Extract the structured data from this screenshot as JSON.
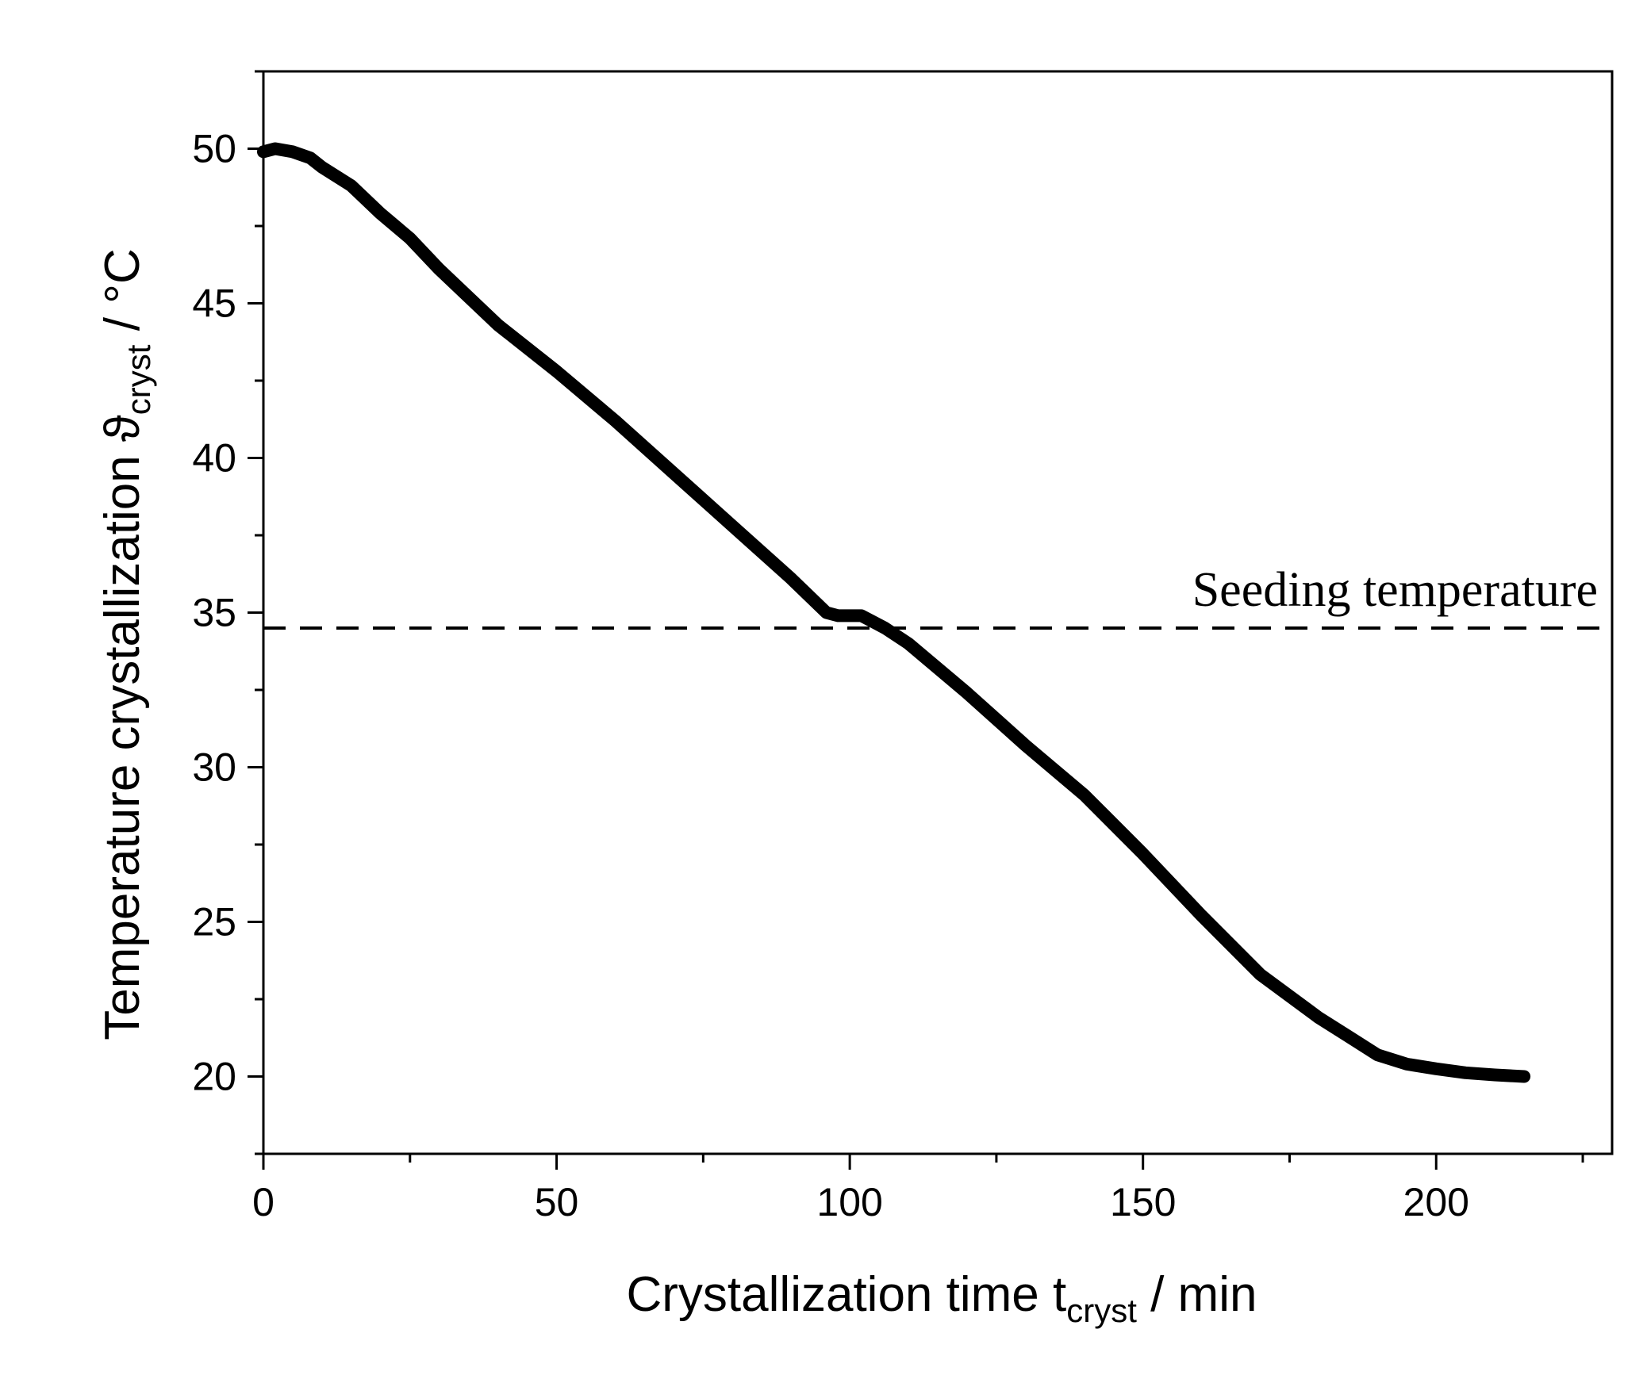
{
  "chart_data": {
    "type": "line",
    "xlabel": {
      "main": "Crystallization time t",
      "sub": "cryst",
      "unit": " / min"
    },
    "ylabel": {
      "main": "Temperature crystallization ϑ",
      "sub": "cryst",
      "unit": " / °C"
    },
    "xlim": [
      0,
      230
    ],
    "ylim": [
      17.5,
      52.5
    ],
    "x_ticks": [
      0,
      50,
      100,
      150,
      200
    ],
    "x_minor_ticks": [
      25,
      75,
      125,
      175,
      225
    ],
    "y_ticks": [
      20,
      25,
      30,
      35,
      40,
      45,
      50
    ],
    "y_minor_ticks": [
      17.5,
      22.5,
      27.5,
      32.5,
      37.5,
      42.5,
      47.5,
      52.5
    ],
    "grid": false,
    "series": [
      {
        "color": "#000000",
        "x": [
          0,
          2,
          5,
          8,
          10,
          15,
          20,
          25,
          30,
          40,
          50,
          60,
          70,
          80,
          90,
          96,
          98,
          100,
          102,
          104,
          106,
          110,
          120,
          130,
          140,
          150,
          160,
          170,
          180,
          185,
          190,
          195,
          200,
          205,
          210,
          215
        ],
        "y": [
          49.9,
          50.0,
          49.9,
          49.7,
          49.4,
          48.8,
          47.9,
          47.1,
          46.1,
          44.3,
          42.8,
          41.2,
          39.5,
          37.8,
          36.1,
          35.0,
          34.9,
          34.9,
          34.9,
          34.7,
          34.5,
          34.0,
          32.4,
          30.7,
          29.1,
          27.2,
          25.2,
          23.3,
          21.9,
          21.3,
          20.7,
          20.4,
          20.25,
          20.12,
          20.05,
          20.0
        ]
      }
    ],
    "reference_line": {
      "y": 34.5,
      "style": "dashed",
      "label": "Seeding temperature"
    }
  }
}
